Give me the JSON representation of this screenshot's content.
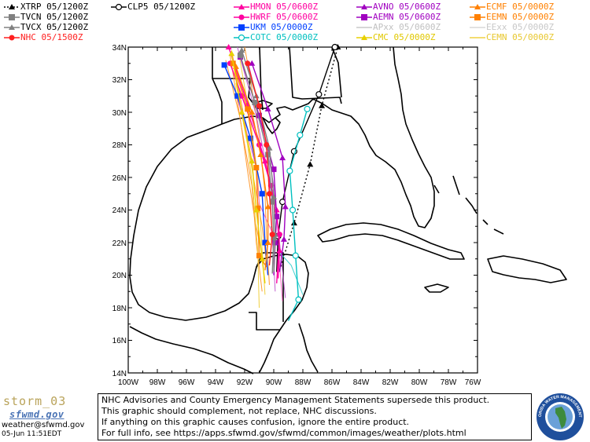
{
  "legend": {
    "col1": [
      {
        "label": "XTRP 05/1200Z",
        "color": "#000000",
        "style": "dotted-triangle"
      },
      {
        "label": "TVCN 05/1200Z",
        "color": "#808080",
        "style": "square"
      },
      {
        "label": "TVCX 05/1200Z",
        "color": "#808080",
        "style": "triangle"
      },
      {
        "label": "NHC 05/1500Z",
        "color": "#ff2020",
        "style": "circle"
      }
    ],
    "col2": [
      {
        "label": "CLP5 05/1200Z",
        "color": "#000000",
        "style": "open-circle"
      }
    ],
    "col3": [
      {
        "label": "HMON 05/0600Z",
        "color": "#ff00a0",
        "style": "triangle"
      },
      {
        "label": "HWRF 05/0600Z",
        "color": "#ff00a0",
        "style": "circle"
      },
      {
        "label": "UKM  05/0000Z",
        "color": "#0040ff",
        "style": "square"
      },
      {
        "label": "COTC 05/0000Z",
        "color": "#00c0c0",
        "style": "open-circle"
      }
    ],
    "col4": [
      {
        "label": "AVNO 05/0600Z",
        "color": "#a000c0",
        "style": "triangle"
      },
      {
        "label": "AEMN 05/0600Z",
        "color": "#a000c0",
        "style": "square"
      },
      {
        "label": "APxx 05/0600Z",
        "color": "#c8c8c8",
        "style": "line"
      },
      {
        "label": "CMC  05/0000Z",
        "color": "#e8d000",
        "style": "triangle"
      }
    ],
    "col5": [
      {
        "label": "ECMF 05/0000Z",
        "color": "#ff8000",
        "style": "triangle"
      },
      {
        "label": "EEMN 05/0000Z",
        "color": "#ff8000",
        "style": "square"
      },
      {
        "label": "EExx 05/0000Z",
        "color": "#d8d8d8",
        "style": "line"
      },
      {
        "label": "CEMN 05/0000Z",
        "color": "#f0d040",
        "style": "line"
      }
    ]
  },
  "map": {
    "lat_labels": [
      "34N",
      "32N",
      "30N",
      "28N",
      "26N",
      "24N",
      "22N",
      "20N",
      "18N",
      "16N",
      "14N"
    ],
    "lon_labels": [
      "100W",
      "98W",
      "96W",
      "94W",
      "92W",
      "90W",
      "88W",
      "86W",
      "84W",
      "82W",
      "80W",
      "78W",
      "76W"
    ]
  },
  "tracks": [
    {
      "name": "XTRP",
      "color": "#000000",
      "dash": "2,3",
      "marker": "triangle",
      "points": [
        [
          -89.6,
          20.3
        ],
        [
          -88.6,
          23.2
        ],
        [
          -87.5,
          26.8
        ],
        [
          -86.7,
          30.4
        ],
        [
          -85.6,
          34.0
        ]
      ]
    },
    {
      "name": "CLP5",
      "color": "#000000",
      "dash": "",
      "marker": "open-circle",
      "points": [
        [
          -89.8,
          20.2
        ],
        [
          -89.7,
          22.4
        ],
        [
          -89.4,
          24.5
        ],
        [
          -88.6,
          27.6
        ],
        [
          -86.9,
          31.1
        ],
        [
          -85.8,
          34.0
        ]
      ]
    },
    {
      "name": "COTC",
      "color": "#00c0c0",
      "dash": "",
      "marker": "open-circle",
      "points": [
        [
          -89.0,
          17.2
        ],
        [
          -88.3,
          18.5
        ],
        [
          -88.5,
          21.2
        ],
        [
          -88.7,
          24.0
        ],
        [
          -88.9,
          26.4
        ],
        [
          -88.2,
          28.6
        ],
        [
          -87.7,
          30.2
        ]
      ]
    },
    {
      "name": "HMON",
      "color": "#ff00a0",
      "dash": "",
      "marker": "triangle",
      "points": [
        [
          -89.7,
          19.8
        ],
        [
          -89.6,
          21.5
        ],
        [
          -89.8,
          24.0
        ],
        [
          -90.6,
          27.0
        ],
        [
          -91.8,
          30.5
        ],
        [
          -93.1,
          34.0
        ]
      ]
    },
    {
      "name": "HWRF",
      "color": "#ff00a0",
      "dash": "",
      "marker": "circle",
      "points": [
        [
          -89.8,
          19.5
        ],
        [
          -89.6,
          22.5
        ],
        [
          -90.2,
          25.5
        ],
        [
          -91.0,
          28.0
        ],
        [
          -92.2,
          31.0
        ],
        [
          -93.0,
          33.0
        ]
      ]
    },
    {
      "name": "UKM",
      "color": "#0040ff",
      "dash": "",
      "marker": "square",
      "points": [
        [
          -90.4,
          20.0
        ],
        [
          -90.6,
          22.0
        ],
        [
          -90.8,
          25.0
        ],
        [
          -91.6,
          28.4
        ],
        [
          -92.5,
          31.0
        ],
        [
          -93.4,
          32.9
        ]
      ]
    },
    {
      "name": "AVNO",
      "color": "#a000c0",
      "dash": "",
      "marker": "triangle",
      "points": [
        [
          -89.6,
          20.2
        ],
        [
          -89.3,
          22.2
        ],
        [
          -89.2,
          24.2
        ],
        [
          -89.4,
          27.2
        ],
        [
          -90.4,
          30.2
        ],
        [
          -91.5,
          33.0
        ]
      ]
    },
    {
      "name": "AEMN",
      "color": "#a000c0",
      "dash": "",
      "marker": "square",
      "points": [
        [
          -90.0,
          20.0
        ],
        [
          -89.9,
          22.0
        ],
        [
          -89.8,
          23.6
        ],
        [
          -90.0,
          26.5
        ],
        [
          -91.0,
          29.8
        ],
        [
          -92.3,
          33.4
        ]
      ]
    },
    {
      "name": "ECMF",
      "color": "#ff8000",
      "dash": "",
      "marker": "triangle",
      "points": [
        [
          -90.6,
          20.3
        ],
        [
          -90.4,
          22.0
        ],
        [
          -90.4,
          24.2
        ],
        [
          -90.9,
          27.4
        ],
        [
          -91.5,
          30.0
        ],
        [
          -92.6,
          32.8
        ]
      ]
    },
    {
      "name": "EEMN",
      "color": "#ff8000",
      "dash": "",
      "marker": "square",
      "points": [
        [
          -90.5,
          20.5
        ],
        [
          -91.0,
          21.2
        ],
        [
          -91.1,
          24.1
        ],
        [
          -91.2,
          26.6
        ],
        [
          -91.8,
          30.2
        ],
        [
          -92.8,
          33.0
        ]
      ]
    },
    {
      "name": "CMC",
      "color": "#e8d000",
      "dash": "",
      "marker": "triangle",
      "points": [
        [
          -90.6,
          19.5
        ],
        [
          -90.8,
          21.0
        ],
        [
          -91.2,
          24.0
        ],
        [
          -91.5,
          27.0
        ],
        [
          -92.2,
          30.0
        ],
        [
          -92.9,
          33.6
        ]
      ]
    },
    {
      "name": "TVCN",
      "color": "#808080",
      "dash": "",
      "marker": "square",
      "points": [
        [
          -90.1,
          20.1
        ],
        [
          -90.0,
          22.3
        ],
        [
          -90.1,
          24.5
        ],
        [
          -90.4,
          27.4
        ],
        [
          -91.3,
          30.6
        ],
        [
          -92.3,
          33.5
        ]
      ]
    },
    {
      "name": "TVCX",
      "color": "#808080",
      "dash": "",
      "marker": "triangle",
      "points": [
        [
          -90.0,
          20.2
        ],
        [
          -89.9,
          22.5
        ],
        [
          -90.0,
          24.8
        ],
        [
          -90.3,
          27.8
        ],
        [
          -91.2,
          31.0
        ],
        [
          -92.2,
          33.8
        ]
      ]
    },
    {
      "name": "NHC",
      "color": "#ff2020",
      "dash": "",
      "marker": "circle",
      "points": [
        [
          -90.3,
          20.6
        ],
        [
          -90.1,
          22.5
        ],
        [
          -90.3,
          25.0
        ],
        [
          -90.5,
          28.0
        ],
        [
          -91.0,
          30.4
        ],
        [
          -91.8,
          33.0
        ]
      ]
    }
  ],
  "ensemble_lines": {
    "orange": [
      [
        [
          -90.4,
          20.0
        ],
        [
          -90.8,
          23.0
        ],
        [
          -91.4,
          26.0
        ],
        [
          -92.0,
          29.5
        ],
        [
          -92.9,
          33.8
        ]
      ],
      [
        [
          -90.8,
          19.0
        ],
        [
          -91.2,
          22.0
        ],
        [
          -91.5,
          25.5
        ],
        [
          -92.2,
          29.0
        ],
        [
          -93.0,
          33.5
        ]
      ],
      [
        [
          -90.3,
          19.4
        ],
        [
          -90.5,
          22.5
        ],
        [
          -90.6,
          25.0
        ],
        [
          -91.0,
          28.5
        ],
        [
          -91.6,
          32.0
        ],
        [
          -92.0,
          34.0
        ]
      ],
      [
        [
          -90.7,
          20.8
        ],
        [
          -91.3,
          23.4
        ],
        [
          -91.8,
          26.4
        ],
        [
          -92.3,
          29.6
        ],
        [
          -93.3,
          33.2
        ]
      ]
    ],
    "yellow": [
      [
        [
          -91.0,
          18.0
        ],
        [
          -91.1,
          21.5
        ],
        [
          -91.4,
          25.0
        ],
        [
          -91.8,
          28.0
        ],
        [
          -92.6,
          31.8
        ]
      ],
      [
        [
          -90.6,
          18.8
        ],
        [
          -90.9,
          23.0
        ],
        [
          -91.1,
          26.0
        ],
        [
          -91.6,
          29.5
        ],
        [
          -92.4,
          33.6
        ]
      ]
    ],
    "purple": [
      [
        [
          -89.2,
          18.6
        ],
        [
          -89.6,
          22.0
        ],
        [
          -90.0,
          25.5
        ],
        [
          -90.8,
          29.5
        ],
        [
          -91.8,
          33.2
        ]
      ],
      [
        [
          -89.9,
          19.0
        ],
        [
          -90.1,
          22.4
        ],
        [
          -90.3,
          25.8
        ],
        [
          -91.2,
          29.8
        ],
        [
          -92.5,
          34.0
        ]
      ]
    ],
    "pink": [
      [
        [
          -89.4,
          18.4
        ],
        [
          -89.7,
          21.8
        ],
        [
          -91.0,
          24.4
        ],
        [
          -91.2,
          26.6
        ],
        [
          -92.6,
          31.2
        ]
      ]
    ],
    "cyan": [
      [
        [
          -88.0,
          18.8
        ],
        [
          -88.8,
          20.6
        ],
        [
          -89.6,
          21.4
        ],
        [
          -90.2,
          23.0
        ]
      ]
    ]
  },
  "footer": {
    "brand": "storm_03",
    "brand_sub": "sfwmd.gov",
    "email": "weather@sfwmd.gov",
    "timestamp": "05-Jun 11:51EDT",
    "seal_text": "SOUTH FLORIDA WATER MANAGEMENT DISTRICT",
    "disclaimer": [
      "NHC Advisories and County Emergency Management Statements supersede this product.",
      "This graphic should complement, not replace, NHC discussions.",
      "If anything on this graphic causes confusion, ignore the entire product.",
      "For full info, see   https://apps.sfwmd.gov/sfwmd/common/images/weather/plots.html"
    ]
  }
}
